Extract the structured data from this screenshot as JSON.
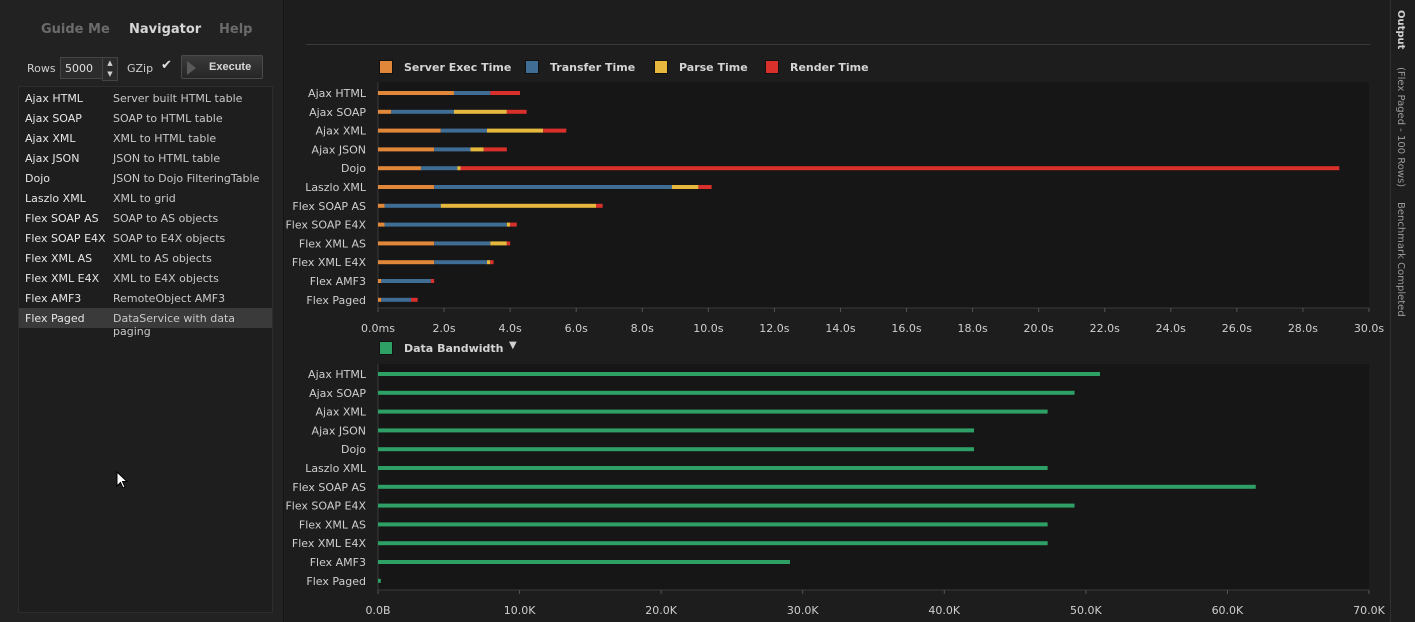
{
  "nav": {
    "tabs": [
      {
        "label": "Guide Me",
        "active": false
      },
      {
        "label": "Navigator",
        "active": true
      },
      {
        "label": "Help",
        "active": false
      }
    ]
  },
  "controls": {
    "rows_label": "Rows",
    "rows_value": "5000",
    "gzip_label": "GZip",
    "gzip_checked": true,
    "execute_label": "Execute"
  },
  "list": [
    {
      "name": "Ajax HTML",
      "desc": "Server built HTML table"
    },
    {
      "name": "Ajax SOAP",
      "desc": "SOAP to HTML table"
    },
    {
      "name": "Ajax XML",
      "desc": "XML to HTML table"
    },
    {
      "name": "Ajax JSON",
      "desc": "JSON to HTML table"
    },
    {
      "name": "Dojo",
      "desc": "JSON to Dojo FilteringTable"
    },
    {
      "name": "Laszlo XML",
      "desc": "XML to grid"
    },
    {
      "name": "Flex SOAP AS",
      "desc": "SOAP to AS objects"
    },
    {
      "name": "Flex SOAP E4X",
      "desc": "SOAP to E4X objects"
    },
    {
      "name": "Flex XML AS",
      "desc": "XML to AS objects"
    },
    {
      "name": "Flex XML E4X",
      "desc": "XML to E4X objects"
    },
    {
      "name": "Flex AMF3",
      "desc": "RemoteObject AMF3"
    },
    {
      "name": "Flex Paged",
      "desc": "DataService with data paging",
      "selected": true
    }
  ],
  "right_strip": {
    "output": "Output",
    "subtitle": "(Flex Paged - 100 Rows)",
    "status": "Benchmark Completed"
  },
  "colors": {
    "server": "#e0873a",
    "transfer": "#3f6d94",
    "parse": "#e6b93e",
    "render": "#d9302c",
    "bandwidth": "#2ea066"
  },
  "chart_data": [
    {
      "type": "bar",
      "orientation": "horizontal",
      "stacked": true,
      "categories": [
        "Ajax HTML",
        "Ajax SOAP",
        "Ajax XML",
        "Ajax JSON",
        "Dojo",
        "Laszlo XML",
        "Flex SOAP AS",
        "Flex SOAP E4X",
        "Flex XML AS",
        "Flex XML E4X",
        "Flex AMF3",
        "Flex Paged"
      ],
      "series": [
        {
          "name": "Server Exec Time",
          "color": "#e0873a",
          "values": [
            2.3,
            0.4,
            1.9,
            1.7,
            1.3,
            1.7,
            0.2,
            0.2,
            1.7,
            1.7,
            0.1,
            0.1
          ]
        },
        {
          "name": "Transfer Time",
          "color": "#3f6d94",
          "values": [
            1.1,
            1.9,
            1.4,
            1.1,
            1.1,
            7.2,
            1.7,
            3.7,
            1.7,
            1.6,
            1.5,
            0.9
          ]
        },
        {
          "name": "Parse Time",
          "color": "#e6b93e",
          "values": [
            0.0,
            1.6,
            1.7,
            0.4,
            0.1,
            0.8,
            4.7,
            0.1,
            0.5,
            0.1,
            0.0,
            0.0
          ]
        },
        {
          "name": "Render Time",
          "color": "#d9302c",
          "values": [
            0.9,
            0.6,
            0.7,
            0.7,
            26.6,
            0.4,
            0.2,
            0.2,
            0.1,
            0.1,
            0.1,
            0.2
          ]
        }
      ],
      "xticks": [
        "0.0ms",
        "2.0s",
        "4.0s",
        "6.0s",
        "8.0s",
        "10.0s",
        "12.0s",
        "14.0s",
        "16.0s",
        "18.0s",
        "20.0s",
        "22.0s",
        "24.0s",
        "26.0s",
        "28.0s",
        "30.0s"
      ],
      "xlim": [
        0,
        30
      ],
      "legend": "top-left"
    },
    {
      "type": "bar",
      "orientation": "horizontal",
      "categories": [
        "Ajax HTML",
        "Ajax SOAP",
        "Ajax XML",
        "Ajax JSON",
        "Dojo",
        "Laszlo XML",
        "Flex SOAP AS",
        "Flex SOAP E4X",
        "Flex XML AS",
        "Flex XML E4X",
        "Flex AMF3",
        "Flex Paged"
      ],
      "series": [
        {
          "name": "Data Bandwidth",
          "color": "#2ea066",
          "values": [
            51000,
            49200,
            47300,
            42100,
            42100,
            47300,
            62000,
            49200,
            47300,
            47300,
            29100,
            200
          ]
        }
      ],
      "xticks": [
        "0.0B",
        "10.0K",
        "20.0K",
        "30.0K",
        "40.0K",
        "50.0K",
        "60.0K",
        "70.0K"
      ],
      "xlim": [
        0,
        70000
      ],
      "legend": "top-left"
    }
  ]
}
